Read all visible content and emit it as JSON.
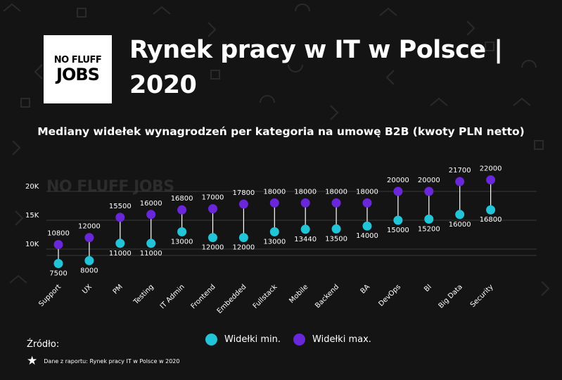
{
  "logo": {
    "line1": "NO FLUFF",
    "line2": "JOBS"
  },
  "title": "Rynek pracy w IT w Polsce | 2020",
  "subtitle": "Mediany widełek wynagrodzeń per kategoria na umowę B2B (kwoty PLN netto)",
  "watermark": "NO FLUFF JOBS",
  "colors": {
    "background": "#141414",
    "min": "#22c4d8",
    "max": "#6a26d9",
    "connector": "#ffffff"
  },
  "chart_data": {
    "type": "dumbbell",
    "categories": [
      "Support",
      "UX",
      "PM",
      "Testing",
      "IT Admin",
      "Frontend",
      "Embedded",
      "Fullstack",
      "Mobile",
      "Backend",
      "BA",
      "DevOps",
      "BI",
      "Big Data",
      "Security"
    ],
    "series": [
      {
        "name": "Widełki min.",
        "values": [
          7500,
          8000,
          11000,
          11000,
          13000,
          12000,
          12000,
          13000,
          13440,
          13500,
          14000,
          15000,
          15200,
          16000,
          16800
        ]
      },
      {
        "name": "Widełki max.",
        "values": [
          10800,
          12000,
          15500,
          16000,
          16800,
          17000,
          17800,
          18000,
          18000,
          18000,
          18000,
          20000,
          20000,
          21700,
          22000
        ]
      }
    ],
    "yticks": [
      {
        "value": 10000,
        "label": "10K"
      },
      {
        "value": 15000,
        "label": "15K"
      },
      {
        "value": 20000,
        "label": "20K"
      }
    ],
    "ylim": [
      5000,
      22000
    ],
    "grid": true
  },
  "legend": {
    "min_label": "Widełki min.",
    "max_label": "Widełki max."
  },
  "source": {
    "label": "Źródło:",
    "note": "Dane z raportu: Rynek pracy IT w  Polsce w 2020"
  }
}
